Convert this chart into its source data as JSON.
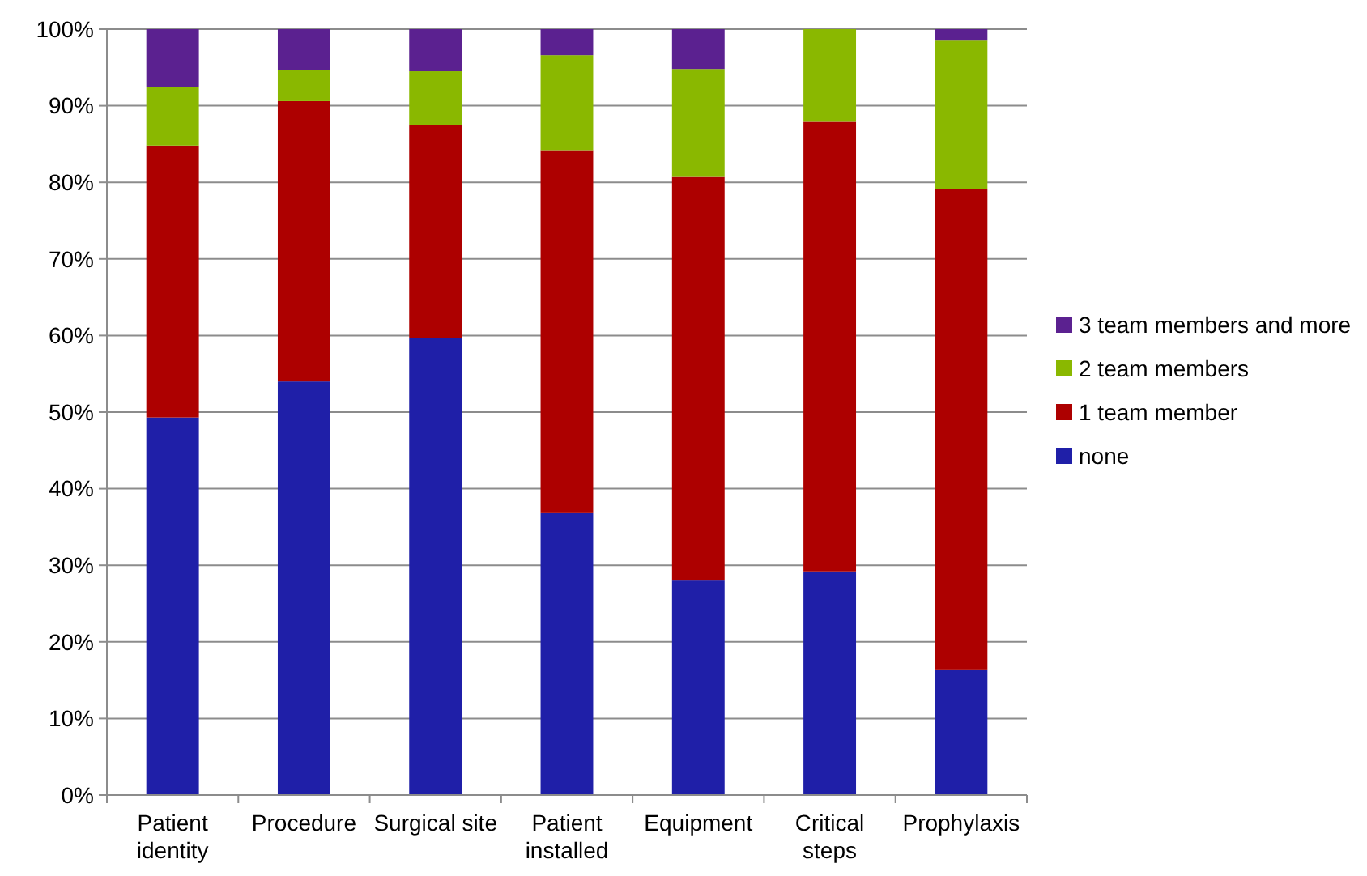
{
  "chart_data": {
    "type": "bar",
    "stacked": true,
    "categories": [
      "Patient\nidentity",
      "Procedure",
      "Surgical site",
      "Patient\ninstalled",
      "Equipment",
      "Critical\nsteps",
      "Prophylaxis"
    ],
    "series": [
      {
        "name": "none",
        "color": "#1f1fa8",
        "values": [
          49.3,
          54.0,
          59.7,
          36.8,
          28.0,
          29.2,
          16.4
        ]
      },
      {
        "name": "1 team member",
        "color": "#ad0000",
        "values": [
          35.5,
          36.6,
          27.8,
          47.4,
          52.7,
          58.7,
          62.7
        ]
      },
      {
        "name": "2 team members",
        "color": "#8ab800",
        "values": [
          7.6,
          4.1,
          7.0,
          12.4,
          14.1,
          12.1,
          19.4
        ]
      },
      {
        "name": "3 team members and more",
        "color": "#5b2190",
        "values": [
          7.6,
          5.3,
          5.5,
          3.4,
          5.2,
          0,
          1.5
        ]
      }
    ],
    "ylim": [
      0,
      100
    ],
    "yticks": [
      {
        "value": 0,
        "label": "0%"
      },
      {
        "value": 10,
        "label": "10%"
      },
      {
        "value": 20,
        "label": "20%"
      },
      {
        "value": 30,
        "label": "30%"
      },
      {
        "value": 40,
        "label": "40%"
      },
      {
        "value": 50,
        "label": "50%"
      },
      {
        "value": 60,
        "label": "60%"
      },
      {
        "value": 70,
        "label": "70%"
      },
      {
        "value": 80,
        "label": "80%"
      },
      {
        "value": 90,
        "label": "90%"
      },
      {
        "value": 100,
        "label": "100%"
      }
    ],
    "grid": "y",
    "legend": "right"
  }
}
